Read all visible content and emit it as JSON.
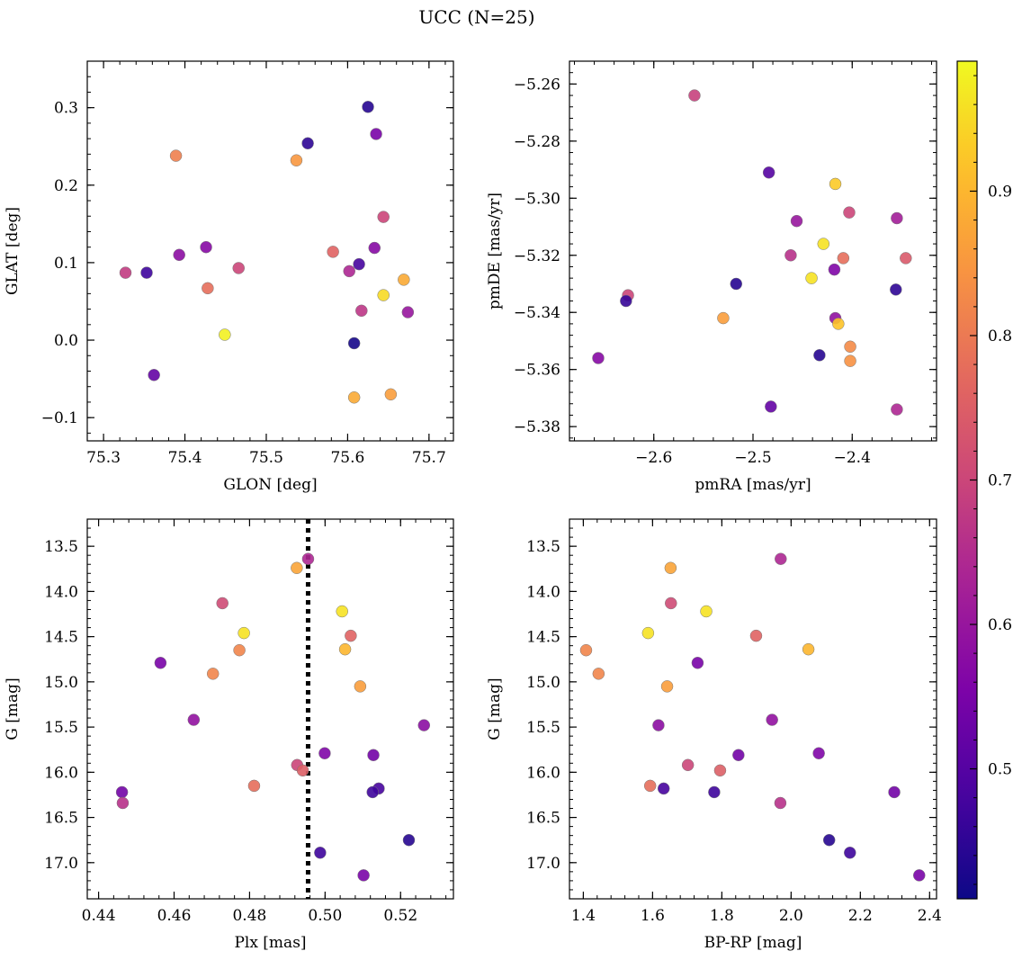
{
  "figure": {
    "title": "UCC (N=25)",
    "colormap": "plasma",
    "colorbar": {
      "range": [
        0.41,
        0.99
      ],
      "ticks": [
        0.5,
        0.6,
        0.7,
        0.8,
        0.9
      ],
      "tick_labels": [
        "0.5",
        "0.6",
        "0.7",
        "0.8",
        "0.9"
      ]
    }
  },
  "chart_data": [
    {
      "type": "scatter",
      "id": "glon-glat",
      "xlabel": "GLON [deg]",
      "ylabel": "GLAT [deg]",
      "xlim": [
        75.28,
        75.73
      ],
      "ylim": [
        -0.13,
        0.36
      ],
      "xticks": [
        75.3,
        75.4,
        75.5,
        75.6,
        75.7
      ],
      "xtick_labels": [
        "75.3",
        "75.4",
        "75.5",
        "75.6",
        "75.7"
      ],
      "yticks": [
        -0.1,
        0.0,
        0.1,
        0.2,
        0.3
      ],
      "ytick_labels": [
        "−0.1",
        "0.0",
        "0.1",
        "0.2",
        "0.3"
      ],
      "invert_y": false,
      "points": [
        [
          75.625,
          0.301,
          0.44
        ],
        [
          75.635,
          0.266,
          0.55
        ],
        [
          75.551,
          0.254,
          0.45
        ],
        [
          75.389,
          0.238,
          0.81
        ],
        [
          75.537,
          0.232,
          0.85
        ],
        [
          75.644,
          0.159,
          0.7
        ],
        [
          75.426,
          0.12,
          0.57
        ],
        [
          75.633,
          0.119,
          0.57
        ],
        [
          75.582,
          0.114,
          0.76
        ],
        [
          75.393,
          0.11,
          0.58
        ],
        [
          75.614,
          0.098,
          0.48
        ],
        [
          75.466,
          0.093,
          0.7
        ],
        [
          75.602,
          0.089,
          0.64
        ],
        [
          75.327,
          0.087,
          0.68
        ],
        [
          75.353,
          0.087,
          0.47
        ],
        [
          75.669,
          0.078,
          0.88
        ],
        [
          75.428,
          0.067,
          0.78
        ],
        [
          75.644,
          0.058,
          0.95
        ],
        [
          75.617,
          0.038,
          0.67
        ],
        [
          75.674,
          0.036,
          0.6
        ],
        [
          75.449,
          0.007,
          0.98
        ],
        [
          75.608,
          -0.004,
          0.42
        ],
        [
          75.362,
          -0.045,
          0.52
        ],
        [
          75.653,
          -0.07,
          0.86
        ],
        [
          75.608,
          -0.074,
          0.88
        ]
      ]
    },
    {
      "type": "scatter",
      "id": "pmra-pmde",
      "xlabel": "pmRA [mas/yr]",
      "ylabel": "pmDE [mas/yr]",
      "xlim": [
        -2.685,
        -2.315
      ],
      "ylim": [
        -5.385,
        -5.252
      ],
      "xticks": [
        -2.6,
        -2.5,
        -2.4
      ],
      "xtick_labels": [
        "−2.6",
        "−2.5",
        "−2.4"
      ],
      "yticks": [
        -5.26,
        -5.28,
        -5.3,
        -5.32,
        -5.34,
        -5.36,
        -5.38
      ],
      "ytick_labels": [
        "−5.26",
        "−5.28",
        "−5.30",
        "−5.32",
        "−5.34",
        "−5.36",
        "−5.38"
      ],
      "invert_y": false,
      "points": [
        [
          -2.559,
          -5.264,
          0.69
        ],
        [
          -2.484,
          -5.291,
          0.5
        ],
        [
          -2.417,
          -5.295,
          0.93
        ],
        [
          -2.403,
          -5.305,
          0.7
        ],
        [
          -2.355,
          -5.307,
          0.62
        ],
        [
          -2.456,
          -5.308,
          0.6
        ],
        [
          -2.429,
          -5.316,
          0.96
        ],
        [
          -2.462,
          -5.32,
          0.66
        ],
        [
          -2.409,
          -5.321,
          0.78
        ],
        [
          -2.346,
          -5.321,
          0.74
        ],
        [
          -2.418,
          -5.325,
          0.56
        ],
        [
          -2.441,
          -5.328,
          0.96
        ],
        [
          -2.517,
          -5.33,
          0.44
        ],
        [
          -2.356,
          -5.332,
          0.45
        ],
        [
          -2.626,
          -5.334,
          0.7
        ],
        [
          -2.628,
          -5.336,
          0.46
        ],
        [
          -2.417,
          -5.342,
          0.59
        ],
        [
          -2.53,
          -5.342,
          0.86
        ],
        [
          -2.414,
          -5.344,
          0.92
        ],
        [
          -2.402,
          -5.352,
          0.83
        ],
        [
          -2.433,
          -5.355,
          0.44
        ],
        [
          -2.656,
          -5.356,
          0.57
        ],
        [
          -2.402,
          -5.357,
          0.84
        ],
        [
          -2.482,
          -5.373,
          0.52
        ],
        [
          -2.355,
          -5.374,
          0.64
        ]
      ]
    },
    {
      "type": "scatter",
      "id": "plx-g",
      "xlabel": "Plx [mas]",
      "ylabel": "G [mag]",
      "xlim": [
        0.437,
        0.534
      ],
      "ylim": [
        17.4,
        13.2
      ],
      "xticks": [
        0.44,
        0.46,
        0.48,
        0.5,
        0.52
      ],
      "xtick_labels": [
        "0.44",
        "0.46",
        "0.48",
        "0.50",
        "0.52"
      ],
      "yticks": [
        13.5,
        14.0,
        14.5,
        15.0,
        15.5,
        16.0,
        16.5,
        17.0
      ],
      "ytick_labels": [
        "13.5",
        "14.0",
        "14.5",
        "15.0",
        "15.5",
        "16.0",
        "16.5",
        "17.0"
      ],
      "invert_y": true,
      "vline_x": 0.4955,
      "points": [
        [
          0.4955,
          13.64,
          0.64
        ],
        [
          0.4925,
          13.74,
          0.87
        ],
        [
          0.4728,
          14.13,
          0.71
        ],
        [
          0.5045,
          14.22,
          0.96
        ],
        [
          0.4785,
          14.46,
          0.96
        ],
        [
          0.5068,
          14.49,
          0.76
        ],
        [
          0.4773,
          14.65,
          0.82
        ],
        [
          0.5053,
          14.64,
          0.9
        ],
        [
          0.4564,
          14.79,
          0.55
        ],
        [
          0.4703,
          14.91,
          0.82
        ],
        [
          0.5093,
          15.05,
          0.86
        ],
        [
          0.4652,
          15.42,
          0.59
        ],
        [
          0.5262,
          15.48,
          0.58
        ],
        [
          0.4999,
          15.79,
          0.56
        ],
        [
          0.5128,
          15.81,
          0.54
        ],
        [
          0.4926,
          15.92,
          0.7
        ],
        [
          0.4941,
          15.98,
          0.75
        ],
        [
          0.4812,
          16.15,
          0.78
        ],
        [
          0.5142,
          16.18,
          0.48
        ],
        [
          0.4462,
          16.22,
          0.54
        ],
        [
          0.5126,
          16.22,
          0.47
        ],
        [
          0.4464,
          16.34,
          0.66
        ],
        [
          0.4987,
          16.89,
          0.47
        ],
        [
          0.5222,
          16.75,
          0.44
        ],
        [
          0.5102,
          17.14,
          0.55
        ]
      ]
    },
    {
      "type": "scatter",
      "id": "bprp-g",
      "xlabel": "BP-RP [mag]",
      "ylabel": "G [mag]",
      "xlim": [
        1.36,
        2.42
      ],
      "ylim": [
        17.4,
        13.2
      ],
      "xticks": [
        1.4,
        1.6,
        1.8,
        2.0,
        2.2,
        2.4
      ],
      "xtick_labels": [
        "1.4",
        "1.6",
        "1.8",
        "2.0",
        "2.2",
        "2.4"
      ],
      "yticks": [
        13.5,
        14.0,
        14.5,
        15.0,
        15.5,
        16.0,
        16.5,
        17.0
      ],
      "ytick_labels": [
        "13.5",
        "14.0",
        "14.5",
        "15.0",
        "15.5",
        "16.0",
        "16.5",
        "17.0"
      ],
      "invert_y": true,
      "points": [
        [
          1.97,
          13.64,
          0.64
        ],
        [
          1.652,
          13.74,
          0.87
        ],
        [
          1.653,
          14.13,
          0.71
        ],
        [
          1.755,
          14.22,
          0.96
        ],
        [
          1.587,
          14.46,
          0.96
        ],
        [
          1.899,
          14.49,
          0.76
        ],
        [
          1.408,
          14.65,
          0.82
        ],
        [
          2.05,
          14.64,
          0.9
        ],
        [
          1.73,
          14.79,
          0.55
        ],
        [
          1.444,
          14.91,
          0.82
        ],
        [
          1.642,
          15.05,
          0.86
        ],
        [
          1.945,
          15.42,
          0.59
        ],
        [
          1.617,
          15.48,
          0.58
        ],
        [
          2.08,
          15.79,
          0.56
        ],
        [
          1.848,
          15.81,
          0.54
        ],
        [
          1.702,
          15.92,
          0.7
        ],
        [
          1.795,
          15.98,
          0.75
        ],
        [
          1.593,
          16.15,
          0.78
        ],
        [
          1.632,
          16.18,
          0.48
        ],
        [
          2.298,
          16.22,
          0.54
        ],
        [
          1.778,
          16.22,
          0.47
        ],
        [
          1.969,
          16.34,
          0.66
        ],
        [
          2.17,
          16.89,
          0.47
        ],
        [
          2.11,
          16.75,
          0.44
        ],
        [
          2.37,
          17.14,
          0.55
        ]
      ]
    }
  ]
}
